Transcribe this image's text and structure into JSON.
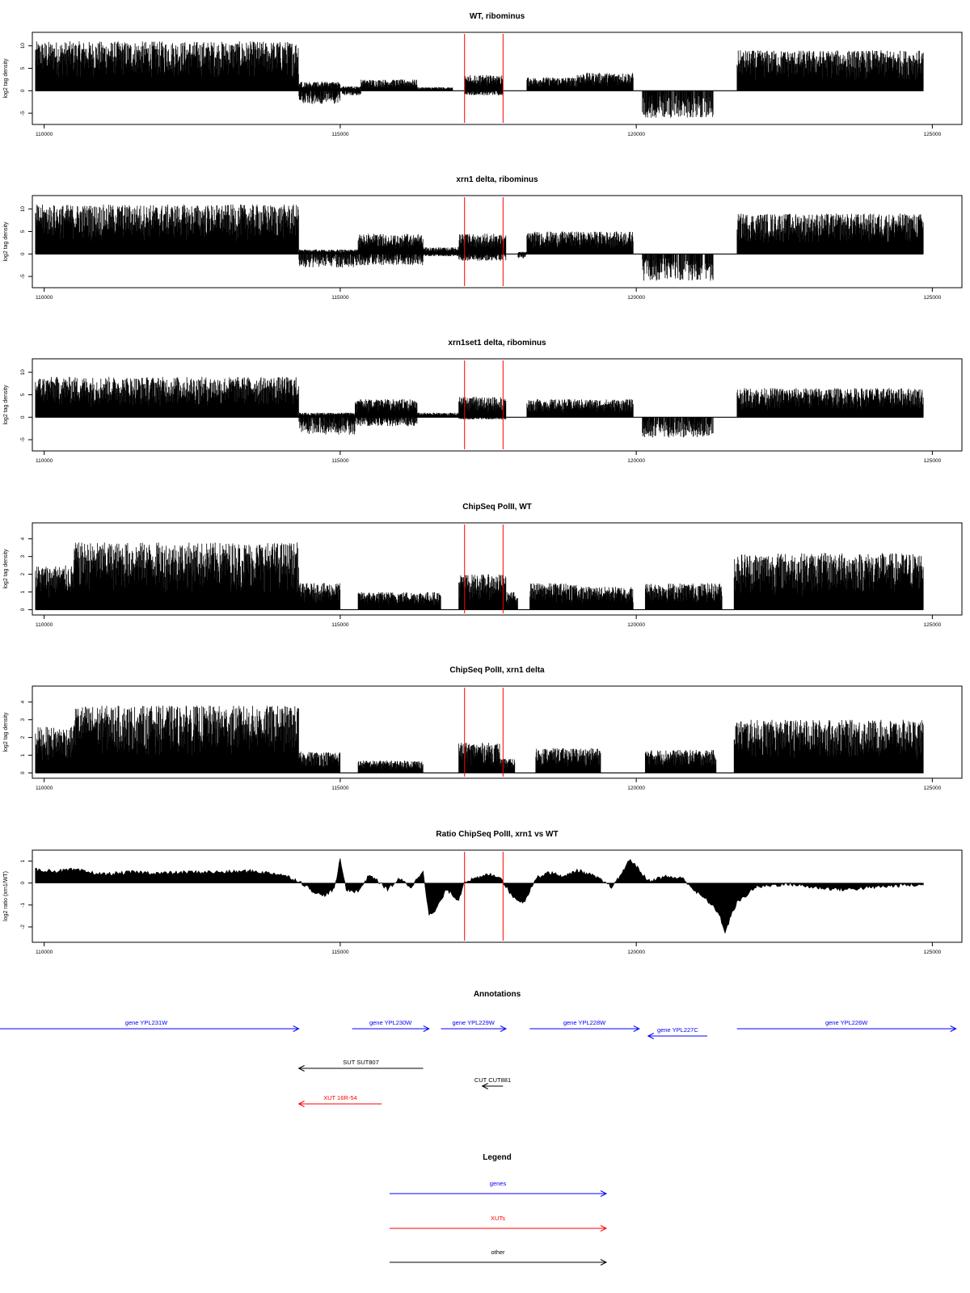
{
  "colors": {
    "gene": "#0000ff",
    "xut": "#ff0000",
    "other": "#000000",
    "marker": "#ff0000",
    "signal": "#000000"
  },
  "chart_data": [
    {
      "type": "bar",
      "title": "WT, ribominus",
      "ylabel": "log2 tag density",
      "xlim": [
        109800,
        125500
      ],
      "ylim": [
        -7.5,
        13
      ],
      "xticks": [
        110000,
        115000,
        120000,
        125000
      ],
      "yticks": [
        -5,
        0,
        5,
        10
      ],
      "markers": [
        117100,
        117750
      ],
      "profile": [
        {
          "x": [
            109850,
            114300
          ],
          "min": 0,
          "max": 11
        },
        {
          "x": [
            114300,
            115000
          ],
          "min": -3,
          "max": 2
        },
        {
          "x": [
            115000,
            115350
          ],
          "min": -1,
          "max": 1
        },
        {
          "x": [
            115350,
            116300
          ],
          "min": 0,
          "max": 2.5
        },
        {
          "x": [
            116300,
            116900
          ],
          "min": 0,
          "max": 0.8
        },
        {
          "x": [
            117100,
            117750
          ],
          "min": -1,
          "max": 3.5
        },
        {
          "x": [
            118150,
            119000
          ],
          "min": 0,
          "max": 3
        },
        {
          "x": [
            119000,
            119950
          ],
          "min": 0,
          "max": 4
        },
        {
          "x": [
            120100,
            121300
          ],
          "min": -6,
          "max": 0
        },
        {
          "x": [
            121700,
            124850
          ],
          "min": 0,
          "max": 9
        }
      ]
    },
    {
      "type": "bar",
      "title": "xrn1 delta, ribominus",
      "ylabel": "log2 tag density",
      "xlim": [
        109800,
        125500
      ],
      "ylim": [
        -7.5,
        13
      ],
      "xticks": [
        110000,
        115000,
        120000,
        125000
      ],
      "yticks": [
        -5,
        0,
        5,
        10
      ],
      "markers": [
        117100,
        117750
      ],
      "profile": [
        {
          "x": [
            109850,
            114300
          ],
          "min": 0,
          "max": 11
        },
        {
          "x": [
            114300,
            115300
          ],
          "min": -3,
          "max": 1
        },
        {
          "x": [
            115300,
            116400
          ],
          "min": -2.5,
          "max": 4.5
        },
        {
          "x": [
            116400,
            117000
          ],
          "min": -0.5,
          "max": 1.5
        },
        {
          "x": [
            117000,
            117800
          ],
          "min": -1.5,
          "max": 4.5
        },
        {
          "x": [
            118000,
            118150
          ],
          "min": -1,
          "max": 0.5
        },
        {
          "x": [
            118150,
            119950
          ],
          "min": 0,
          "max": 5
        },
        {
          "x": [
            120100,
            121300
          ],
          "min": -6,
          "max": 0
        },
        {
          "x": [
            121700,
            124850
          ],
          "min": 0,
          "max": 9
        }
      ]
    },
    {
      "type": "bar",
      "title": "xrn1set1 delta, ribominus",
      "ylabel": "log2 tag density",
      "xlim": [
        109800,
        125500
      ],
      "ylim": [
        -7.5,
        13
      ],
      "xticks": [
        110000,
        115000,
        120000,
        125000
      ],
      "yticks": [
        -5,
        0,
        5,
        10
      ],
      "markers": [
        117100,
        117750
      ],
      "profile": [
        {
          "x": [
            109850,
            114300
          ],
          "min": 0,
          "max": 9
        },
        {
          "x": [
            114300,
            115250
          ],
          "min": -4,
          "max": 1
        },
        {
          "x": [
            115250,
            116300
          ],
          "min": -2,
          "max": 4
        },
        {
          "x": [
            116300,
            117000
          ],
          "min": 0,
          "max": 1
        },
        {
          "x": [
            117000,
            117800
          ],
          "min": -0.5,
          "max": 4.5
        },
        {
          "x": [
            118150,
            119950
          ],
          "min": 0,
          "max": 4
        },
        {
          "x": [
            120100,
            121300
          ],
          "min": -4.5,
          "max": 0
        },
        {
          "x": [
            121700,
            124850
          ],
          "min": 0,
          "max": 6.5
        }
      ]
    },
    {
      "type": "bar",
      "title": "ChipSeq PolII, WT",
      "ylabel": "log2 tag density",
      "xlim": [
        109800,
        125500
      ],
      "ylim": [
        -0.3,
        4.9
      ],
      "xticks": [
        110000,
        115000,
        120000,
        125000
      ],
      "yticks": [
        0,
        1,
        2,
        3,
        4
      ],
      "markers": [
        117100,
        117750
      ],
      "profile": [
        {
          "x": [
            109850,
            110500
          ],
          "min": 0,
          "max": 2.5
        },
        {
          "x": [
            110500,
            114300
          ],
          "min": 0,
          "max": 3.8
        },
        {
          "x": [
            114300,
            115000
          ],
          "min": 0,
          "max": 1.5
        },
        {
          "x": [
            115300,
            116700
          ],
          "min": 0,
          "max": 1
        },
        {
          "x": [
            117000,
            117800
          ],
          "min": 0,
          "max": 2
        },
        {
          "x": [
            117800,
            118000
          ],
          "min": 0,
          "max": 1
        },
        {
          "x": [
            118200,
            119000
          ],
          "min": 0,
          "max": 1.5
        },
        {
          "x": [
            119000,
            119950
          ],
          "min": 0,
          "max": 1.3
        },
        {
          "x": [
            120150,
            121450
          ],
          "min": 0,
          "max": 1.5
        },
        {
          "x": [
            121650,
            124850
          ],
          "min": 0,
          "max": 3.2
        }
      ]
    },
    {
      "type": "bar",
      "title": "ChipSeq PolII, xrn1 delta",
      "ylabel": "log2 tag density",
      "xlim": [
        109800,
        125500
      ],
      "ylim": [
        -0.3,
        4.9
      ],
      "xticks": [
        110000,
        115000,
        120000,
        125000
      ],
      "yticks": [
        0,
        1,
        2,
        3,
        4
      ],
      "markers": [
        117100,
        117750
      ],
      "profile": [
        {
          "x": [
            109850,
            110500
          ],
          "min": 0,
          "max": 2.6
        },
        {
          "x": [
            110500,
            114300
          ],
          "min": 0,
          "max": 3.8
        },
        {
          "x": [
            114300,
            115000
          ],
          "min": 0,
          "max": 1.2
        },
        {
          "x": [
            115300,
            116400
          ],
          "min": 0,
          "max": 0.7
        },
        {
          "x": [
            117000,
            117700
          ],
          "min": 0,
          "max": 1.7
        },
        {
          "x": [
            117700,
            117950
          ],
          "min": 0,
          "max": 0.8
        },
        {
          "x": [
            118300,
            119400
          ],
          "min": 0,
          "max": 1.4
        },
        {
          "x": [
            120150,
            121350
          ],
          "min": 0,
          "max": 1.3
        },
        {
          "x": [
            121650,
            124850
          ],
          "min": 0,
          "max": 3.0
        }
      ]
    },
    {
      "type": "area",
      "title": "Ratio ChipSeq PolII, xrn1 vs WT",
      "ylabel": "log2 ratio (xrn1/WT)",
      "xlim": [
        109800,
        125500
      ],
      "ylim": [
        -2.7,
        1.5
      ],
      "xticks": [
        110000,
        115000,
        120000,
        125000
      ],
      "yticks": [
        -2,
        -1,
        0,
        1
      ],
      "markers": [
        117100,
        117750
      ],
      "x": [
        109850,
        110200,
        110500,
        111000,
        111500,
        112000,
        112500,
        113000,
        113500,
        114000,
        114300,
        114500,
        114700,
        114900,
        115000,
        115100,
        115300,
        115500,
        115800,
        116000,
        116200,
        116400,
        116500,
        116600,
        116800,
        117000,
        117100,
        117300,
        117500,
        117700,
        117900,
        118100,
        118300,
        118500,
        118800,
        119000,
        119300,
        119600,
        119900,
        120200,
        120500,
        120800,
        121000,
        121200,
        121400,
        121500,
        121600,
        121700,
        121800,
        122000,
        122300,
        122600,
        123000,
        123500,
        124000,
        124500,
        124850
      ],
      "values": [
        0.6,
        0.55,
        0.6,
        0.4,
        0.5,
        0.45,
        0.5,
        0.5,
        0.55,
        0.4,
        0.1,
        -0.3,
        -0.6,
        -0.3,
        1.1,
        -0.3,
        -0.4,
        0.4,
        -0.3,
        0.2,
        -0.2,
        0.6,
        -1.5,
        -1.3,
        -0.3,
        -0.8,
        0.1,
        0.2,
        0.4,
        0.3,
        -0.6,
        -0.9,
        0.2,
        0.5,
        0.3,
        0.6,
        0.3,
        -0.2,
        1.1,
        0.1,
        0.3,
        0.2,
        -0.4,
        -0.8,
        -1.4,
        -2.3,
        -1.5,
        -0.9,
        -0.7,
        -0.2,
        -0.1,
        -0.05,
        -0.2,
        -0.3,
        -0.2,
        -0.1,
        -0.1
      ]
    }
  ],
  "annotations": {
    "title": "Annotations",
    "items": [
      {
        "label": "gene YPL231W",
        "kind": "gene",
        "dir": "right",
        "x": [
          109150,
          114300
        ],
        "row": 0
      },
      {
        "label": "gene YPL230W",
        "kind": "gene",
        "dir": "right",
        "x": [
          115200,
          116500
        ],
        "row": 0
      },
      {
        "label": "gene YPL229W",
        "kind": "gene",
        "dir": "right",
        "x": [
          116700,
          117800
        ],
        "row": 0
      },
      {
        "label": "gene YPL228W",
        "kind": "gene",
        "dir": "right",
        "x": [
          118200,
          120050
        ],
        "row": 0
      },
      {
        "label": "gene YPL227C",
        "kind": "gene",
        "dir": "left",
        "x": [
          120200,
          121200
        ],
        "row": 1
      },
      {
        "label": "gene YPL226W",
        "kind": "gene",
        "dir": "right",
        "x": [
          121700,
          125400
        ],
        "row": 0
      },
      {
        "label": "SUT SUT807",
        "kind": "other",
        "dir": "left",
        "x": [
          114300,
          116400
        ],
        "row": 2
      },
      {
        "label": "CUT CUT881",
        "kind": "other",
        "dir": "left",
        "x": [
          117400,
          117750
        ],
        "row": 3
      },
      {
        "label": "XUT 16R-54",
        "kind": "xut",
        "dir": "left",
        "x": [
          114300,
          115700
        ],
        "row": 4
      }
    ]
  },
  "legend": {
    "title": "Legend",
    "items": [
      {
        "label": "genes",
        "kind": "gene"
      },
      {
        "label": "XUTs",
        "kind": "xut"
      },
      {
        "label": "other",
        "kind": "other"
      }
    ]
  }
}
